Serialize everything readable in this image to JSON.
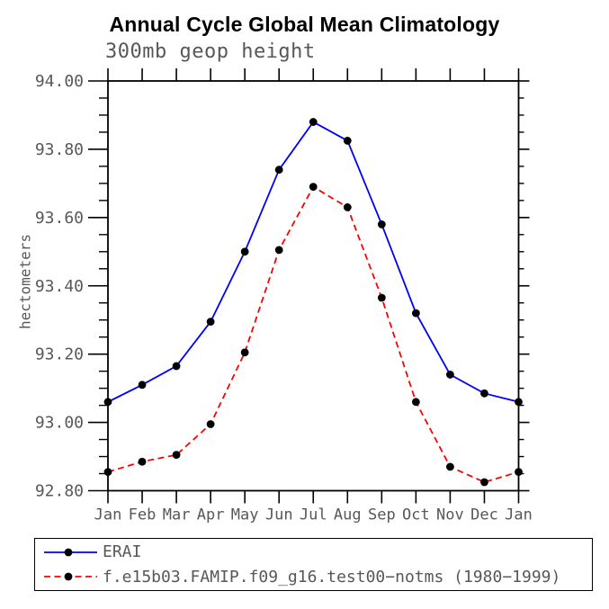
{
  "title": "Annual Cycle Global Mean Climatology",
  "subtitle": "300mb geop height",
  "ylabel": "hectometers",
  "colors": {
    "axis_text": "#585858",
    "axis_line": "#000000",
    "title_text": "#000000",
    "erai_line": "#0000ff",
    "model_line": "#ff0000",
    "marker": "#000000"
  },
  "chart_data": {
    "type": "line",
    "x_categories": [
      "Jan",
      "Feb",
      "Mar",
      "Apr",
      "May",
      "Jun",
      "Jul",
      "Aug",
      "Sep",
      "Oct",
      "Nov",
      "Dec",
      "Jan"
    ],
    "series": [
      {
        "name": "ERAI",
        "color": "#0000ff",
        "style": "solid",
        "marker": "circle",
        "marker_color": "#000000",
        "values": [
          93.06,
          93.11,
          93.165,
          93.295,
          93.5,
          93.74,
          93.88,
          93.825,
          93.58,
          93.32,
          93.14,
          93.085,
          93.06
        ]
      },
      {
        "name": "f.e15b03.FAMIP.f09_g16.test00−notms (1980−1999)",
        "color": "#ff0000",
        "style": "dashed",
        "marker": "circle",
        "marker_color": "#000000",
        "values": [
          92.855,
          92.885,
          92.905,
          92.995,
          93.205,
          93.505,
          93.69,
          93.63,
          93.365,
          93.06,
          92.87,
          92.825,
          92.855
        ]
      }
    ],
    "xlabel": "",
    "ylabel": "hectometers",
    "ylim": [
      92.8,
      94.0
    ],
    "ytick_major": 0.2,
    "ytick_minor": 0.05,
    "ytick_labels": [
      "92.80",
      "93.00",
      "93.20",
      "93.40",
      "93.60",
      "93.80",
      "94.00"
    ],
    "grid": false,
    "legend_position": "bottom"
  }
}
